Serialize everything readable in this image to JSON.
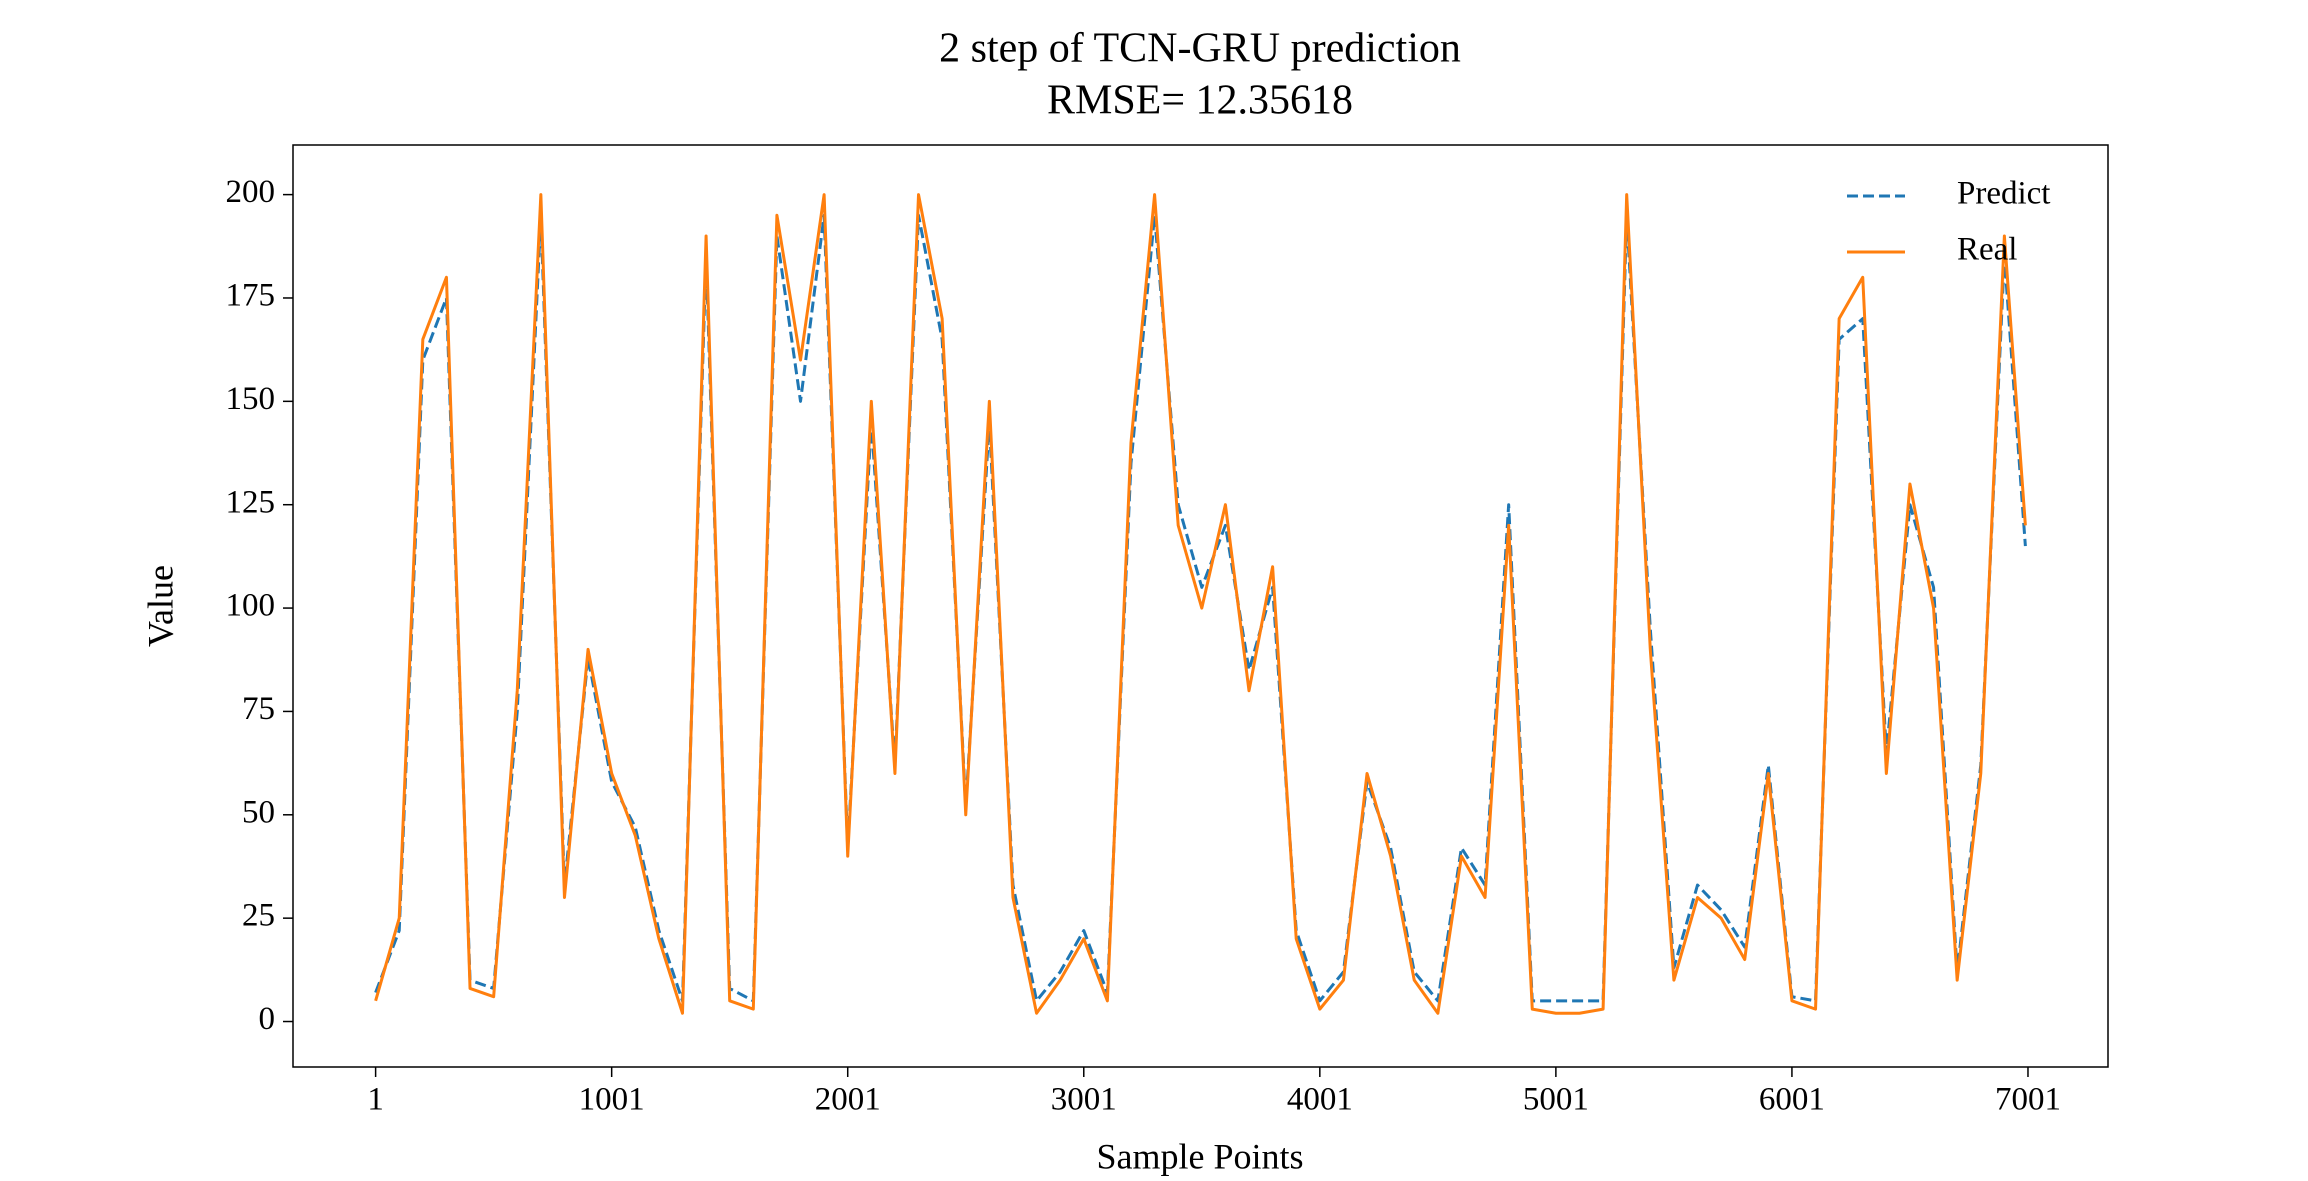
{
  "chart_data": {
    "type": "line",
    "title": "2 step of TCN-GRU prediction",
    "subtitle": "RMSE= 12.35618",
    "x_label": "Sample Points",
    "y_label": "Value",
    "x": [
      1,
      101,
      201,
      301,
      401,
      501,
      601,
      701,
      801,
      901,
      1001,
      1101,
      1201,
      1301,
      1401,
      1501,
      1601,
      1701,
      1801,
      1901,
      2001,
      2101,
      2201,
      2301,
      2401,
      2501,
      2601,
      2701,
      2801,
      2901,
      3001,
      3101,
      3201,
      3301,
      3401,
      3501,
      3601,
      3701,
      3801,
      3901,
      4001,
      4101,
      4201,
      4301,
      4401,
      4501,
      4601,
      4701,
      4801,
      4901,
      5001,
      5101,
      5201,
      5301,
      5401,
      5501,
      5601,
      5701,
      5801,
      5901,
      6001,
      6101,
      6201,
      6301,
      6401,
      6501,
      6601,
      6701,
      6801,
      6901,
      6990
    ],
    "series": [
      {
        "name": "Predict",
        "color": "#1f77b4",
        "dashed": true,
        "values": [
          7,
          22,
          160,
          175,
          10,
          8,
          75,
          195,
          33,
          88,
          58,
          47,
          22,
          5,
          185,
          8,
          5,
          190,
          150,
          195,
          42,
          145,
          62,
          195,
          165,
          52,
          145,
          33,
          5,
          12,
          22,
          7,
          135,
          195,
          125,
          105,
          120,
          85,
          105,
          22,
          5,
          12,
          58,
          42,
          12,
          5,
          42,
          33,
          125,
          5,
          5,
          5,
          5,
          195,
          95,
          13,
          33,
          27,
          18,
          62,
          6,
          5,
          165,
          170,
          65,
          125,
          105,
          12,
          62,
          185,
          115
        ]
      },
      {
        "name": "Real",
        "color": "#ff7f0e",
        "dashed": false,
        "values": [
          5,
          25,
          165,
          180,
          8,
          6,
          80,
          200,
          30,
          90,
          60,
          45,
          20,
          2,
          190,
          5,
          3,
          195,
          160,
          200,
          40,
          150,
          60,
          200,
          170,
          50,
          150,
          30,
          2,
          10,
          20,
          5,
          140,
          200,
          120,
          100,
          125,
          80,
          110,
          20,
          3,
          10,
          60,
          40,
          10,
          2,
          40,
          30,
          120,
          3,
          2,
          2,
          3,
          200,
          90,
          10,
          30,
          25,
          15,
          60,
          5,
          3,
          170,
          180,
          60,
          130,
          100,
          10,
          60,
          190,
          120
        ]
      }
    ],
    "xlim": [
      -349,
      7340
    ],
    "ylim": [
      -11,
      212
    ],
    "xticks": [
      1,
      1001,
      2001,
      3001,
      4001,
      5001,
      6001,
      7001
    ],
    "yticks": [
      0,
      25,
      50,
      75,
      100,
      125,
      150,
      175,
      200
    ],
    "legend": "upper right"
  }
}
